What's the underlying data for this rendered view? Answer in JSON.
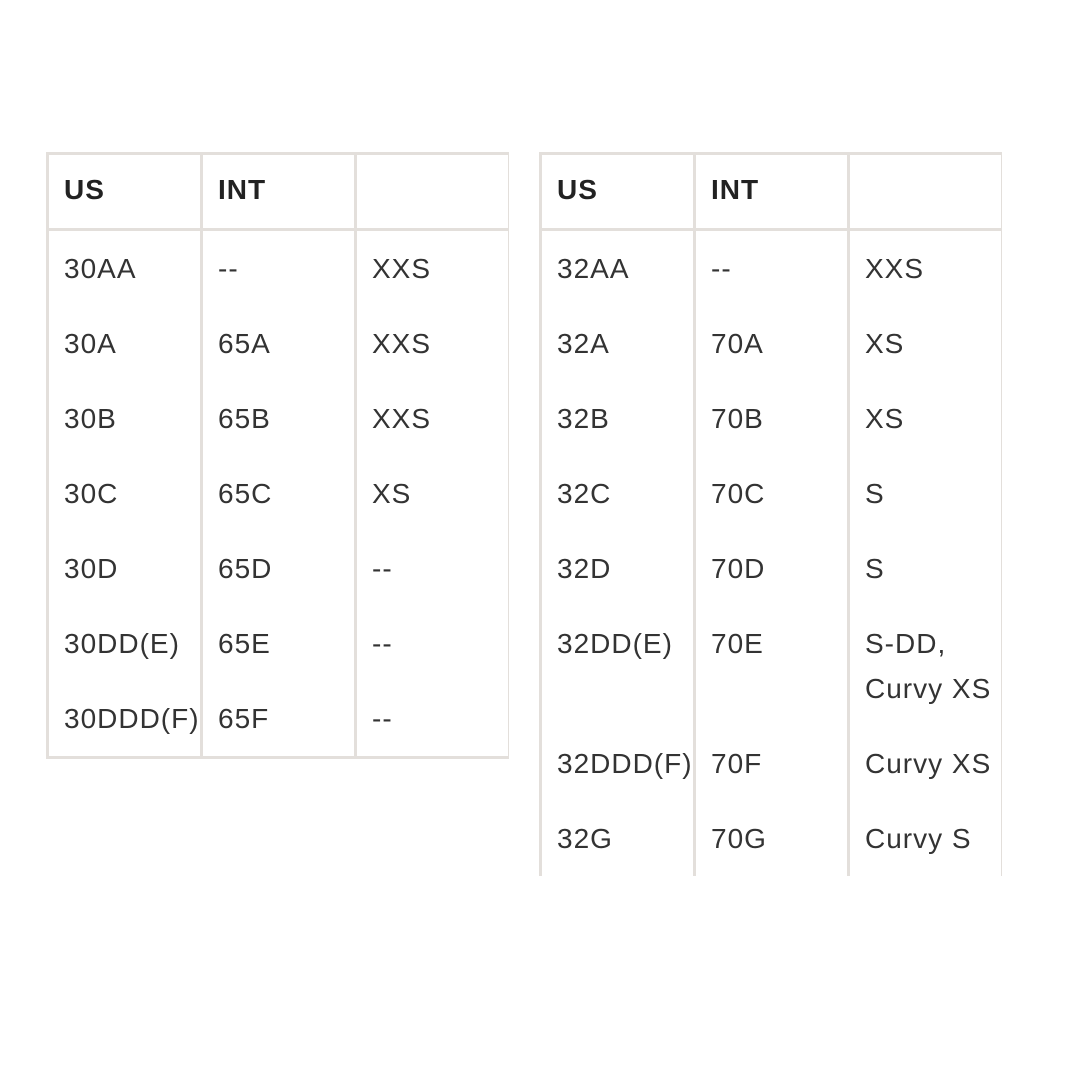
{
  "tables": [
    {
      "headers": [
        "US",
        "INT",
        ""
      ],
      "rows": [
        [
          "30AA",
          "--",
          "XXS"
        ],
        [
          "30A",
          "65A",
          "XXS"
        ],
        [
          "30B",
          "65B",
          "XXS"
        ],
        [
          "30C",
          "65C",
          "XS"
        ],
        [
          "30D",
          "65D",
          "--"
        ],
        [
          "30DD(E)",
          "65E",
          "--"
        ],
        [
          "30DDD(F)",
          "65F",
          "--"
        ]
      ]
    },
    {
      "headers": [
        "US",
        "INT",
        ""
      ],
      "rows": [
        [
          "32AA",
          "--",
          "XXS"
        ],
        [
          "32A",
          "70A",
          "XS"
        ],
        [
          "32B",
          "70B",
          "XS"
        ],
        [
          "32C",
          "70C",
          "S"
        ],
        [
          "32D",
          "70D",
          "S"
        ],
        [
          "32DD(E)",
          "70E",
          "S-DD, Curvy XS"
        ],
        [
          "32DDD(F)",
          "70F",
          "Curvy XS"
        ],
        [
          "32G",
          "70G",
          "Curvy S"
        ]
      ]
    }
  ]
}
